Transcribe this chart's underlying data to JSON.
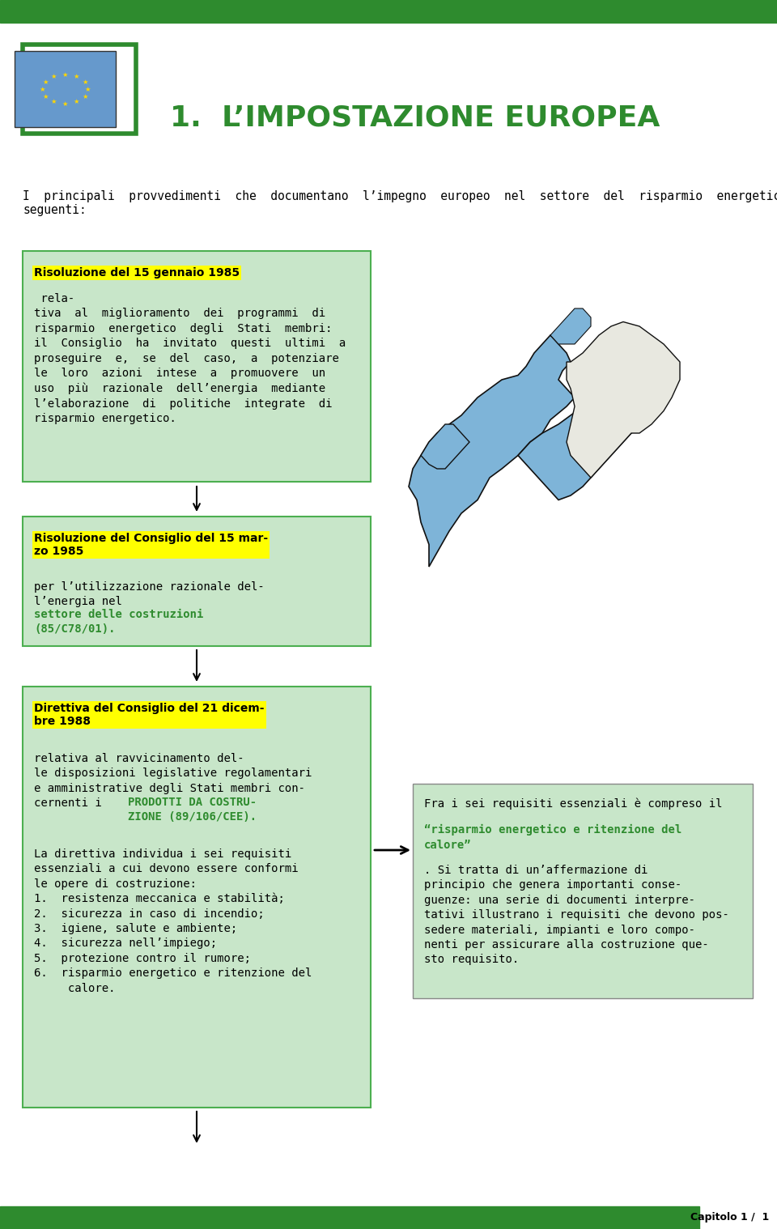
{
  "bg_color": "#ffffff",
  "header_bar_color": "#2e8b2e",
  "footer_bar_color": "#2e8b2e",
  "title_text": "1.  L’IMPOSTAZIONE EUROPEA",
  "title_color": "#2e8b2e",
  "title_fontsize": 26,
  "intro_text": "I  principali  provvedimenti  che  documentano  l’impegno  europeo  nel  settore  del  risparmio  energetico  sono  i\nseguenti:",
  "intro_fontsize": 10.5,
  "box_bg": "#c8e6c9",
  "box_border": "#4caf50",
  "highlight_color": "#ffff00",
  "arrow_color": "#000000",
  "text_color": "#000000",
  "green_text_color": "#2e8b2e",
  "footer_text": "Capitolo 1 /  1",
  "box1_title_bold": "Risoluzione del 15 gennaio 1985",
  "box1_body": " rela-\ntiva  al  miglioramento  dei  programmi  di\nrisparmio  energetico  degli  Stati  membri:\nil  Consiglio  ha  invitato  questi  ultimi  a\nproseguire  e,  se  del  caso,  a  potenziare\nle  loro  azioni  intese  a  promuovere  un\nuso  più  razionale  dell’energia  mediante\nl’elaborazione  di  politiche  integrate  di\nrisparmio energetico.",
  "box2_title_bold": "Risoluzione del Consiglio del 15 mar-\nzo 1985",
  "box2_body_normal": " per l’utilizzazione razionale del-\nl’energia nel ",
  "box2_body_green": "settore delle costruzioni\n(85/C78/01).",
  "box3_title_bold": "Direttiva del Consiglio del 21 dicem-\nbre 1988",
  "box3_body_normal1": " relativa al ravvicinamento del-\nle disposizioni legislative regolamentari\ne amministrative degli Stati membri con-\ncernenti i    ",
  "box3_body_green": "PRODOTTI DA COSTRU-\nZIONE (89/106/CEE).",
  "box3_body_normal2": "La direttiva individua i sei requisiti\nessenziali a cui devono essere conformi\nle opere di costruzione:\n1.  resistenza meccanica e stabilità;\n2.  sicurezza in caso di incendio;\n3.  igiene, salute e ambiente;\n4.  sicurezza nell’impiego;\n5.  protezione contro il rumore;\n6.  risparmio energetico e ritenzione del\n     calore.",
  "box4_body_normal1": "Fra i sei requisiti essenziali è compreso il\n“",
  "box4_body_green": "risparmio energetico e ritenzione del\ncalore",
  "box4_body_normal2": "”. Si tratta di un’affermazione di\nprincipio che genera importanti conse-\nguenze: una serie di documenti interpre-\ntativi illustrano i requisiti che devono pos-\nsedere materiali, impianti e loro compo-\nnenti per assicurare alla costruzione que-\nsto requisito.",
  "map_eu_color": "#7eb4d8",
  "map_border_color": "#111111",
  "map_bg_color": "#ffffff"
}
